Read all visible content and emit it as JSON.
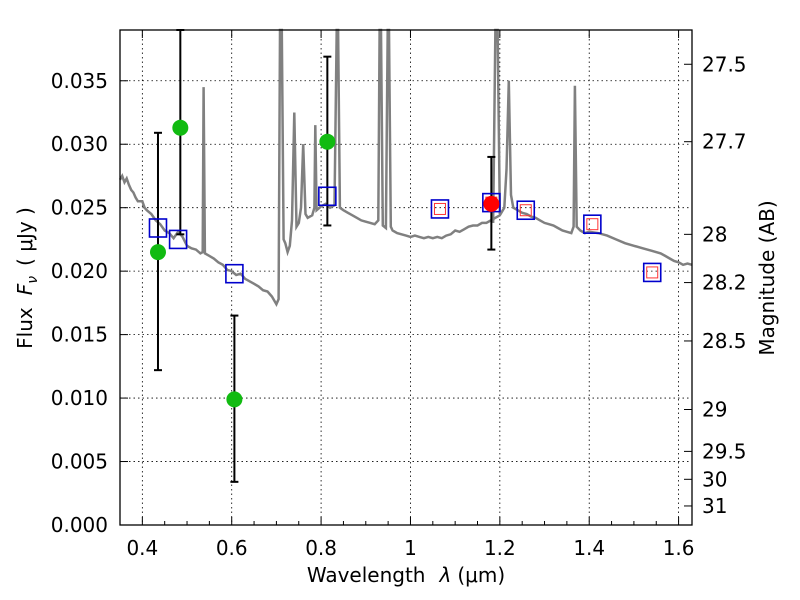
{
  "chart_data": {
    "type": "scatter",
    "xlabel_prefix": "Wavelength",
    "xlabel_symbol": "λ",
    "xlabel_unit": "(μm)",
    "ylabel_prefix": "Flux",
    "ylabel_symbol": "F",
    "ylabel_sub": "ν",
    "ylabel_unit": "( μJy )",
    "y2label": "Magnitude (AB)",
    "xlim": [
      0.35,
      1.63
    ],
    "ylim": [
      0.0,
      0.039
    ],
    "grid": true,
    "x_ticks": [
      0.4,
      0.6,
      0.8,
      1.0,
      1.2,
      1.4,
      1.6
    ],
    "x_tick_labels": [
      "0.4",
      "0.6",
      "0.8",
      "1",
      "1.2",
      "1.4",
      "1.6"
    ],
    "y_ticks": [
      0.0,
      0.005,
      0.01,
      0.015,
      0.02,
      0.025,
      0.03,
      0.035
    ],
    "y_tick_labels": [
      "0.000",
      "0.005",
      "0.010",
      "0.015",
      "0.020",
      "0.025",
      "0.030",
      "0.035"
    ],
    "y2_ticks": [
      {
        "label": "27.5",
        "flux": 0.0363
      },
      {
        "label": "27.7",
        "flux": 0.0302
      },
      {
        "label": "28",
        "flux": 0.0229
      },
      {
        "label": "28.2",
        "flux": 0.0191
      },
      {
        "label": "28.5",
        "flux": 0.0145
      },
      {
        "label": "29",
        "flux": 0.0091
      },
      {
        "label": "29.5",
        "flux": 0.0058
      },
      {
        "label": "30",
        "flux": 0.0036
      },
      {
        "label": "31",
        "flux": 0.0015
      }
    ],
    "colors": {
      "sed": "#808080",
      "green": "#11bb11",
      "red": "#ff0000",
      "square_blue": "#0000cc",
      "square_red": "#ff3333",
      "errorbar": "#000000"
    },
    "sed_model": [
      [
        0.35,
        0.0272
      ],
      [
        0.355,
        0.0275
      ],
      [
        0.36,
        0.027
      ],
      [
        0.365,
        0.0273
      ],
      [
        0.37,
        0.0268
      ],
      [
        0.375,
        0.0264
      ],
      [
        0.38,
        0.0262
      ],
      [
        0.385,
        0.0258
      ],
      [
        0.39,
        0.0255
      ],
      [
        0.4,
        0.0255
      ],
      [
        0.405,
        0.025
      ],
      [
        0.41,
        0.0248
      ],
      [
        0.42,
        0.0245
      ],
      [
        0.43,
        0.024
      ],
      [
        0.44,
        0.0237
      ],
      [
        0.45,
        0.0232
      ],
      [
        0.46,
        0.023
      ],
      [
        0.47,
        0.0226
      ],
      [
        0.48,
        0.0231
      ],
      [
        0.49,
        0.0227
      ],
      [
        0.5,
        0.022
      ],
      [
        0.51,
        0.0218
      ],
      [
        0.52,
        0.0217
      ],
      [
        0.53,
        0.0214
      ],
      [
        0.535,
        0.0215
      ],
      [
        0.537,
        0.0345
      ],
      [
        0.54,
        0.0214
      ],
      [
        0.55,
        0.0212
      ],
      [
        0.56,
        0.021
      ],
      [
        0.57,
        0.0207
      ],
      [
        0.58,
        0.0205
      ],
      [
        0.59,
        0.0201
      ],
      [
        0.6,
        0.02
      ],
      [
        0.61,
        0.0197
      ],
      [
        0.62,
        0.0198
      ],
      [
        0.63,
        0.0194
      ],
      [
        0.64,
        0.0192
      ],
      [
        0.65,
        0.019
      ],
      [
        0.66,
        0.0188
      ],
      [
        0.67,
        0.0185
      ],
      [
        0.68,
        0.0184
      ],
      [
        0.69,
        0.018
      ],
      [
        0.7,
        0.0174
      ],
      [
        0.705,
        0.0178
      ],
      [
        0.708,
        0.039
      ],
      [
        0.712,
        0.039
      ],
      [
        0.716,
        0.0225
      ],
      [
        0.72,
        0.0222
      ],
      [
        0.725,
        0.0215
      ],
      [
        0.73,
        0.022
      ],
      [
        0.735,
        0.024
      ],
      [
        0.74,
        0.0325
      ],
      [
        0.745,
        0.0235
      ],
      [
        0.75,
        0.0238
      ],
      [
        0.755,
        0.025
      ],
      [
        0.76,
        0.03
      ],
      [
        0.765,
        0.0245
      ],
      [
        0.77,
        0.0242
      ],
      [
        0.78,
        0.0244
      ],
      [
        0.785,
        0.025
      ],
      [
        0.787,
        0.0315
      ],
      [
        0.79,
        0.0248
      ],
      [
        0.8,
        0.0251
      ],
      [
        0.81,
        0.0253
      ],
      [
        0.82,
        0.025
      ],
      [
        0.83,
        0.0252
      ],
      [
        0.835,
        0.039
      ],
      [
        0.838,
        0.039
      ],
      [
        0.842,
        0.025
      ],
      [
        0.85,
        0.0248
      ],
      [
        0.86,
        0.0246
      ],
      [
        0.87,
        0.0244
      ],
      [
        0.88,
        0.0242
      ],
      [
        0.89,
        0.024
      ],
      [
        0.9,
        0.0239
      ],
      [
        0.91,
        0.0238
      ],
      [
        0.92,
        0.0237
      ],
      [
        0.928,
        0.024
      ],
      [
        0.931,
        0.039
      ],
      [
        0.934,
        0.039
      ],
      [
        0.938,
        0.0236
      ],
      [
        0.945,
        0.0234
      ],
      [
        0.949,
        0.039
      ],
      [
        0.952,
        0.039
      ],
      [
        0.956,
        0.0235
      ],
      [
        0.96,
        0.0232
      ],
      [
        0.97,
        0.023
      ],
      [
        0.98,
        0.0229
      ],
      [
        0.99,
        0.0228
      ],
      [
        1.0,
        0.0227
      ],
      [
        1.01,
        0.0228
      ],
      [
        1.02,
        0.0227
      ],
      [
        1.03,
        0.0226
      ],
      [
        1.04,
        0.0227
      ],
      [
        1.05,
        0.0226
      ],
      [
        1.06,
        0.0227
      ],
      [
        1.07,
        0.0226
      ],
      [
        1.08,
        0.0228
      ],
      [
        1.09,
        0.0229
      ],
      [
        1.1,
        0.0232
      ],
      [
        1.11,
        0.0231
      ],
      [
        1.12,
        0.0233
      ],
      [
        1.13,
        0.0235
      ],
      [
        1.14,
        0.0236
      ],
      [
        1.15,
        0.0236
      ],
      [
        1.16,
        0.0238
      ],
      [
        1.17,
        0.0238
      ],
      [
        1.18,
        0.024
      ],
      [
        1.19,
        0.0242
      ],
      [
        1.2,
        0.0244
      ],
      [
        1.21,
        0.025
      ],
      [
        1.215,
        0.028
      ],
      [
        1.22,
        0.035
      ],
      [
        1.225,
        0.026
      ],
      [
        1.23,
        0.025
      ],
      [
        1.24,
        0.0248
      ],
      [
        1.25,
        0.0246
      ],
      [
        1.26,
        0.0245
      ],
      [
        1.27,
        0.0243
      ],
      [
        1.28,
        0.0242
      ],
      [
        1.29,
        0.024
      ],
      [
        1.3,
        0.0238
      ],
      [
        1.31,
        0.0237
      ],
      [
        1.32,
        0.0236
      ],
      [
        1.33,
        0.0234
      ],
      [
        1.34,
        0.0232
      ],
      [
        1.35,
        0.0231
      ],
      [
        1.36,
        0.023
      ],
      [
        1.365,
        0.0235
      ],
      [
        1.368,
        0.0346
      ],
      [
        1.372,
        0.0235
      ],
      [
        1.38,
        0.0232
      ],
      [
        1.39,
        0.023
      ],
      [
        1.4,
        0.0231
      ],
      [
        1.42,
        0.023
      ],
      [
        1.44,
        0.0228
      ],
      [
        1.46,
        0.0225
      ],
      [
        1.48,
        0.0222
      ],
      [
        1.5,
        0.022
      ],
      [
        1.52,
        0.0218
      ],
      [
        1.54,
        0.0216
      ],
      [
        1.56,
        0.0214
      ],
      [
        1.57,
        0.0212
      ],
      [
        1.58,
        0.021
      ],
      [
        1.59,
        0.0208
      ],
      [
        1.6,
        0.0207
      ],
      [
        1.61,
        0.0205
      ],
      [
        1.62,
        0.0206
      ],
      [
        1.63,
        0.0205
      ]
    ],
    "sed_line_gaps": [
      [
        0.7,
        0.705,
        0.708,
        0.712,
        0.716
      ],
      [
        1.183,
        1.188,
        1.191,
        1.196,
        1.2
      ]
    ],
    "observed_points": [
      {
        "x": 0.435,
        "y": 0.0215,
        "y_low": 0.0122,
        "y_high": 0.0309,
        "color": "green"
      },
      {
        "x": 0.485,
        "y": 0.0313,
        "y_low": 0.0229,
        "y_high": 0.039,
        "color": "green"
      },
      {
        "x": 0.606,
        "y": 0.0099,
        "y_low": 0.0034,
        "y_high": 0.0165,
        "color": "green"
      },
      {
        "x": 0.814,
        "y": 0.0302,
        "y_low": 0.0236,
        "y_high": 0.0369,
        "color": "green"
      },
      {
        "x": 1.181,
        "y": 0.0253,
        "y_low": 0.0217,
        "y_high": 0.029,
        "color": "red"
      }
    ],
    "model_photometry": [
      {
        "x": 0.435,
        "y": 0.0234,
        "kind": "blue"
      },
      {
        "x": 0.48,
        "y": 0.0225,
        "kind": "blue"
      },
      {
        "x": 0.606,
        "y": 0.0198,
        "kind": "blue"
      },
      {
        "x": 0.814,
        "y": 0.0259,
        "kind": "blue"
      },
      {
        "x": 1.066,
        "y": 0.0249,
        "kind": "blue-red"
      },
      {
        "x": 1.181,
        "y": 0.0254,
        "kind": "blue-red"
      },
      {
        "x": 1.258,
        "y": 0.0248,
        "kind": "blue-red"
      },
      {
        "x": 1.407,
        "y": 0.0237,
        "kind": "blue-red"
      },
      {
        "x": 1.541,
        "y": 0.0199,
        "kind": "blue-red"
      }
    ]
  }
}
